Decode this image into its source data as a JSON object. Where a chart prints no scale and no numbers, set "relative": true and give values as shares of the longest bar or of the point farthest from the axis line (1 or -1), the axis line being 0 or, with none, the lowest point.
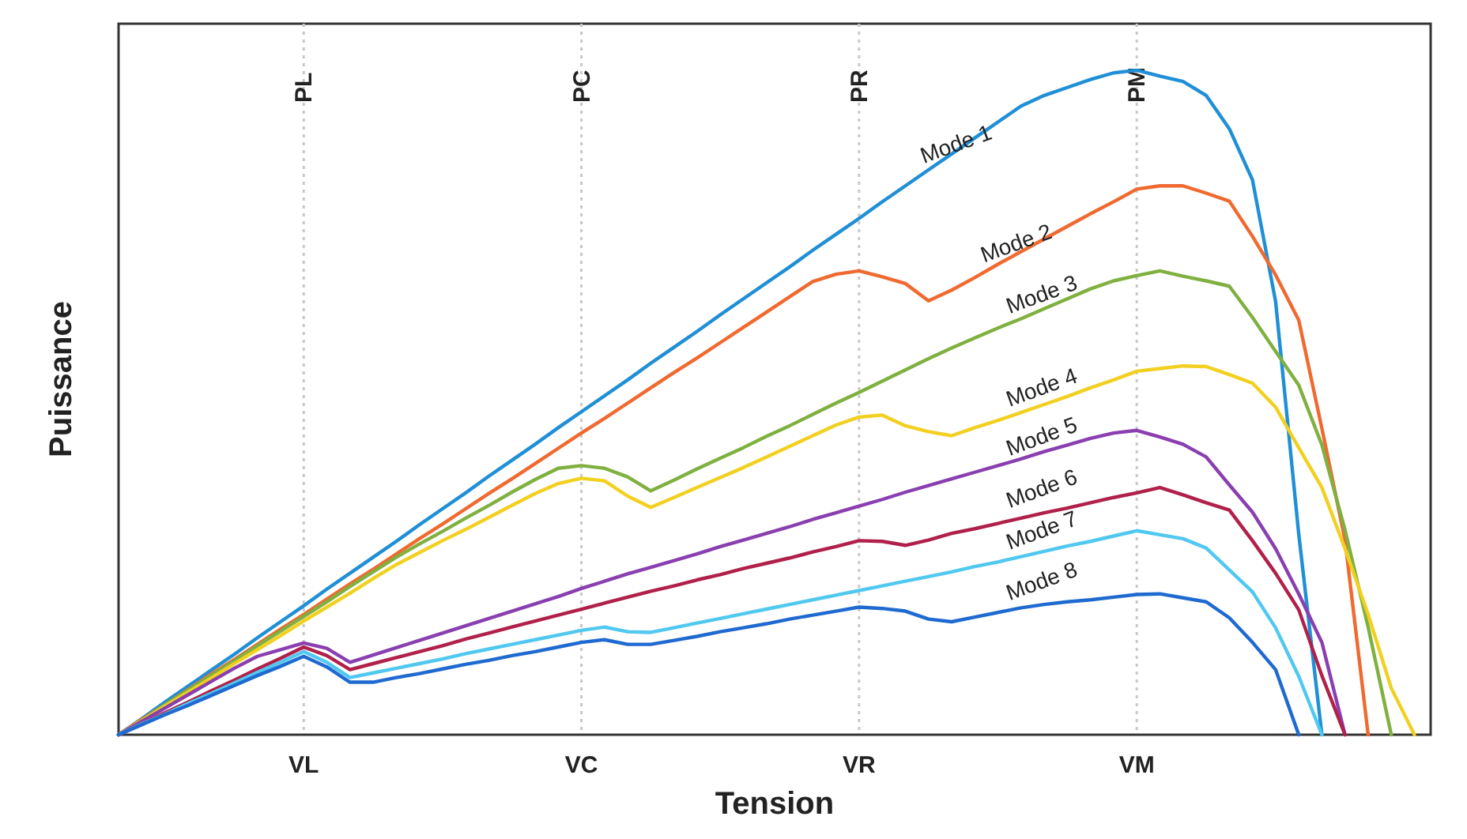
{
  "chart_data": {
    "type": "line",
    "relative": true,
    "xlabel": "Tension",
    "ylabel": "Puissance",
    "tick_labels": "x",
    "line_style": "solid",
    "categories": [
      null,
      null,
      null,
      null,
      null,
      null,
      null,
      null,
      "VL",
      null,
      null,
      null,
      null,
      null,
      null,
      null,
      null,
      null,
      null,
      null,
      "VC",
      null,
      null,
      null,
      null,
      null,
      null,
      null,
      null,
      null,
      null,
      null,
      "VR",
      null,
      null,
      null,
      null,
      null,
      null,
      null,
      null,
      null,
      null,
      null,
      "VM",
      null,
      null,
      null,
      null,
      null,
      null,
      null,
      null,
      null,
      null,
      null,
      null
    ],
    "ref_lines": [
      {
        "axis": "x",
        "value": "VL",
        "label": "PL",
        "color": "#c8c8c8",
        "line_style": "dotted"
      },
      {
        "axis": "x",
        "value": "VC",
        "label": "PC",
        "color": "#c8c8c8",
        "line_style": "dotted"
      },
      {
        "axis": "x",
        "value": "VR",
        "label": "PR",
        "color": "#c8c8c8",
        "line_style": "dotted"
      },
      {
        "axis": "x",
        "value": "VM",
        "label": "PM",
        "color": "#c8c8c8",
        "line_style": "dotted"
      }
    ],
    "series": [
      {
        "name": "Mode 1",
        "color": "#1f8fd6",
        "values": [
          0,
          0.024,
          0.049,
          0.073,
          0.097,
          0.121,
          0.146,
          0.17,
          0.194,
          0.219,
          0.243,
          0.267,
          0.291,
          0.316,
          0.34,
          0.364,
          0.389,
          0.413,
          0.437,
          0.462,
          0.486,
          0.51,
          0.534,
          0.559,
          0.583,
          0.607,
          0.632,
          0.656,
          0.68,
          0.704,
          0.729,
          0.753,
          0.777,
          0.802,
          0.826,
          0.85,
          0.874,
          0.898,
          0.922,
          0.946,
          0.962,
          0.974,
          0.986,
          0.996,
          1,
          0.991,
          0.983,
          0.962,
          0.912,
          0.835,
          0.652,
          0.302,
          0,
          null,
          null,
          null,
          null
        ]
      },
      {
        "name": "Mode 2",
        "color": "#f06a30",
        "values": [
          0,
          0.023,
          0.045,
          0.068,
          0.091,
          0.113,
          0.136,
          0.159,
          0.181,
          0.204,
          0.227,
          0.249,
          0.272,
          0.295,
          0.317,
          0.34,
          0.363,
          0.385,
          0.408,
          0.431,
          0.454,
          0.476,
          0.499,
          0.522,
          0.545,
          0.567,
          0.59,
          0.613,
          0.636,
          0.659,
          0.682,
          0.693,
          0.698,
          0.689,
          0.679,
          0.653,
          0.669,
          0.688,
          0.708,
          0.727,
          0.746,
          0.765,
          0.784,
          0.802,
          0.821,
          0.826,
          0.826,
          0.815,
          0.803,
          0.75,
          0.692,
          0.624,
          0.461,
          0.293,
          0,
          null,
          null
        ]
      },
      {
        "name": "Mode 3",
        "color": "#7fb040",
        "values": [
          0,
          0.022,
          0.045,
          0.067,
          0.089,
          0.111,
          0.134,
          0.156,
          0.178,
          0.2,
          0.223,
          0.245,
          0.267,
          0.287,
          0.306,
          0.326,
          0.345,
          0.365,
          0.384,
          0.401,
          0.405,
          0.401,
          0.388,
          0.367,
          0.383,
          0.4,
          0.416,
          0.432,
          0.449,
          0.465,
          0.482,
          0.499,
          0.515,
          0.532,
          0.549,
          0.566,
          0.582,
          0.597,
          0.612,
          0.626,
          0.641,
          0.656,
          0.671,
          0.683,
          0.691,
          0.698,
          0.69,
          0.683,
          0.675,
          0.628,
          0.577,
          0.526,
          0.436,
          0.308,
          0.162,
          0,
          null
        ]
      },
      {
        "name": "Mode 4",
        "color": "#f2d020",
        "values": [
          0,
          0.021,
          0.043,
          0.064,
          0.085,
          0.107,
          0.128,
          0.149,
          0.171,
          0.192,
          0.213,
          0.235,
          0.256,
          0.274,
          0.292,
          0.309,
          0.327,
          0.345,
          0.363,
          0.378,
          0.386,
          0.382,
          0.359,
          0.342,
          0.357,
          0.372,
          0.387,
          0.402,
          0.418,
          0.434,
          0.45,
          0.466,
          0.478,
          0.481,
          0.465,
          0.456,
          0.45,
          0.462,
          0.473,
          0.485,
          0.497,
          0.509,
          0.522,
          0.534,
          0.547,
          0.551,
          0.555,
          0.554,
          0.542,
          0.529,
          0.493,
          0.432,
          0.372,
          0.28,
          0.181,
          0.07,
          0
        ]
      },
      {
        "name": "Mode 5",
        "color": "#8a3fb0",
        "values": [
          0,
          0.02,
          0.04,
          0.06,
          0.08,
          0.1,
          0.118,
          0.128,
          0.138,
          0.13,
          0.109,
          0.12,
          0.131,
          0.142,
          0.153,
          0.164,
          0.175,
          0.186,
          0.197,
          0.208,
          0.22,
          0.231,
          0.242,
          0.252,
          0.262,
          0.272,
          0.283,
          0.293,
          0.303,
          0.313,
          0.324,
          0.334,
          0.344,
          0.354,
          0.365,
          0.375,
          0.385,
          0.395,
          0.405,
          0.415,
          0.426,
          0.436,
          0.446,
          0.454,
          0.458,
          0.448,
          0.437,
          0.418,
          0.376,
          0.335,
          0.28,
          0.212,
          0.139,
          0,
          null,
          null,
          null
        ]
      },
      {
        "name": "Mode 6",
        "color": "#b0204a",
        "values": [
          0,
          0.016,
          0.033,
          0.049,
          0.066,
          0.082,
          0.099,
          0.115,
          0.132,
          0.119,
          0.098,
          0.107,
          0.116,
          0.125,
          0.134,
          0.144,
          0.153,
          0.162,
          0.171,
          0.18,
          0.189,
          0.198,
          0.207,
          0.216,
          0.224,
          0.233,
          0.241,
          0.25,
          0.258,
          0.266,
          0.275,
          0.283,
          0.292,
          0.291,
          0.285,
          0.293,
          0.303,
          0.31,
          0.318,
          0.326,
          0.334,
          0.341,
          0.349,
          0.357,
          0.364,
          0.372,
          0.361,
          0.349,
          0.338,
          0.292,
          0.243,
          0.188,
          0.089,
          0,
          null,
          null,
          null
        ]
      },
      {
        "name": "Mode 7",
        "color": "#50c8f0",
        "values": [
          0,
          0.016,
          0.031,
          0.047,
          0.062,
          0.078,
          0.094,
          0.109,
          0.125,
          0.109,
          0.086,
          0.093,
          0.1,
          0.107,
          0.114,
          0.122,
          0.129,
          0.136,
          0.143,
          0.15,
          0.157,
          0.162,
          0.155,
          0.154,
          0.161,
          0.168,
          0.175,
          0.182,
          0.189,
          0.196,
          0.203,
          0.21,
          0.217,
          0.224,
          0.231,
          0.238,
          0.245,
          0.253,
          0.26,
          0.268,
          0.276,
          0.284,
          0.291,
          0.299,
          0.307,
          0.301,
          0.295,
          0.281,
          0.248,
          0.215,
          0.161,
          0.088,
          0,
          null,
          null,
          null,
          null
        ]
      },
      {
        "name": "Mode 8",
        "color": "#1f6ad0",
        "values": [
          0,
          0.015,
          0.03,
          0.044,
          0.059,
          0.074,
          0.089,
          0.103,
          0.118,
          0.102,
          0.079,
          0.079,
          0.086,
          0.092,
          0.099,
          0.106,
          0.112,
          0.119,
          0.125,
          0.132,
          0.139,
          0.143,
          0.136,
          0.136,
          0.142,
          0.148,
          0.155,
          0.161,
          0.167,
          0.174,
          0.18,
          0.186,
          0.192,
          0.19,
          0.186,
          0.174,
          0.17,
          0.177,
          0.184,
          0.191,
          0.196,
          0.2,
          0.203,
          0.207,
          0.211,
          0.212,
          0.206,
          0.2,
          0.176,
          0.139,
          0.098,
          0,
          null,
          null,
          null,
          null,
          null
        ]
      }
    ]
  }
}
